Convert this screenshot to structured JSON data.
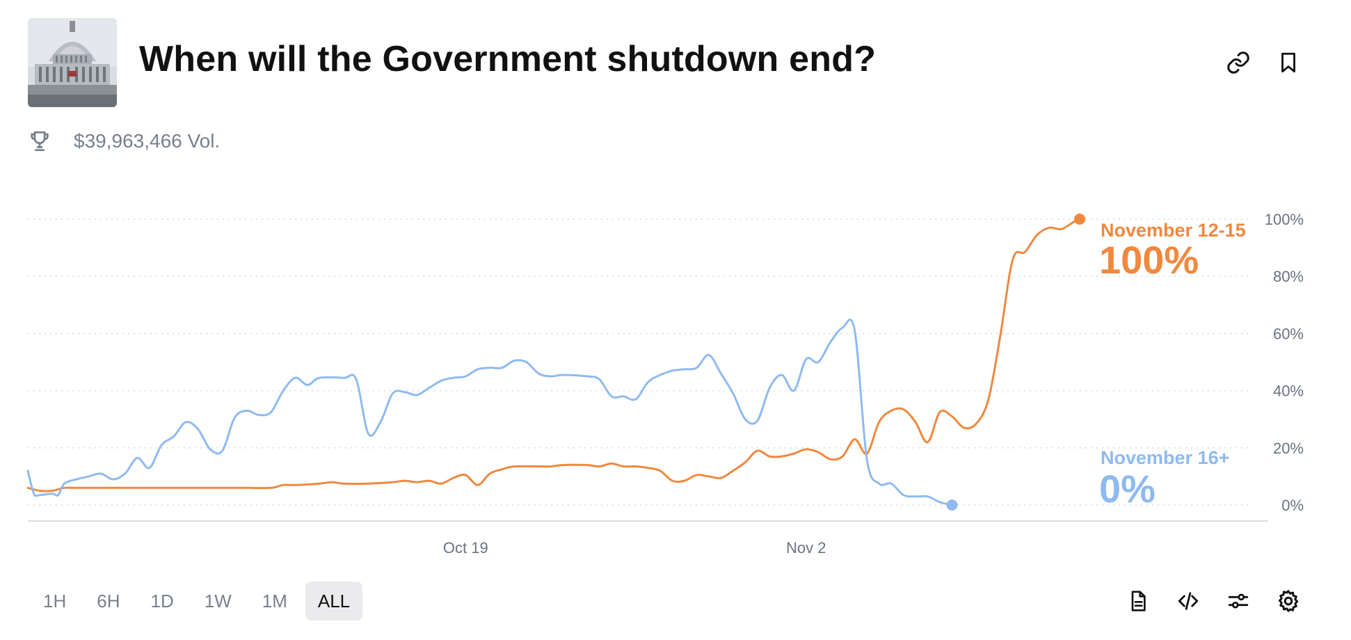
{
  "header": {
    "title": "When will the Government shutdown end?",
    "volume": "$39,963,466 Vol.",
    "thumbnail_icon": "capitol-building-image",
    "link_icon": "link-icon",
    "bookmark_icon": "bookmark-icon",
    "trophy_icon": "trophy-icon"
  },
  "chart_data": {
    "type": "line",
    "ylim": [
      0,
      100
    ],
    "y_ticks": [
      "100%",
      "80%",
      "60%",
      "40%",
      "20%",
      "0%"
    ],
    "x_ticks": [
      "Oct 19",
      "Nov 2"
    ],
    "grid": true,
    "x_start": "2025-10-01",
    "series": [
      {
        "name": "November 12-15",
        "color": "#f0883e",
        "last_value_label": "100%",
        "points": [
          [
            "2025-10-01",
            6
          ],
          [
            "2025-10-01T12:00",
            5
          ],
          [
            "2025-10-02",
            5
          ],
          [
            "2025-10-02T12:00",
            6
          ],
          [
            "2025-10-03",
            6
          ],
          [
            "2025-10-04",
            6
          ],
          [
            "2025-10-05",
            6
          ],
          [
            "2025-10-06",
            6
          ],
          [
            "2025-10-07",
            6
          ],
          [
            "2025-10-08",
            6
          ],
          [
            "2025-10-09",
            6
          ],
          [
            "2025-10-10",
            6
          ],
          [
            "2025-10-11",
            6
          ],
          [
            "2025-10-11T12:00",
            7
          ],
          [
            "2025-10-12",
            7
          ],
          [
            "2025-10-13",
            7.5
          ],
          [
            "2025-10-13T12:00",
            8
          ],
          [
            "2025-10-14",
            7.5
          ],
          [
            "2025-10-15",
            7.5
          ],
          [
            "2025-10-16",
            8
          ],
          [
            "2025-10-16T12:00",
            8.5
          ],
          [
            "2025-10-17",
            8
          ],
          [
            "2025-10-17T12:00",
            8.5
          ],
          [
            "2025-10-18",
            7.5
          ],
          [
            "2025-10-18T12:00",
            9.5
          ],
          [
            "2025-10-19",
            10.5
          ],
          [
            "2025-10-19T12:00",
            7
          ],
          [
            "2025-10-20",
            11
          ],
          [
            "2025-10-20T12:00",
            12.5
          ],
          [
            "2025-10-21",
            13.5
          ],
          [
            "2025-10-22",
            13.5
          ],
          [
            "2025-10-22T12:00",
            13.5
          ],
          [
            "2025-10-23",
            14
          ],
          [
            "2025-10-24",
            14
          ],
          [
            "2025-10-24T12:00",
            13.5
          ],
          [
            "2025-10-25",
            14.5
          ],
          [
            "2025-10-25T12:00",
            13.5
          ],
          [
            "2025-10-26",
            13.5
          ],
          [
            "2025-10-26T12:00",
            13
          ],
          [
            "2025-10-27",
            12
          ],
          [
            "2025-10-27T12:00",
            8.5
          ],
          [
            "2025-10-28",
            8.5
          ],
          [
            "2025-10-28T12:00",
            10.5
          ],
          [
            "2025-10-29",
            10
          ],
          [
            "2025-10-29T12:00",
            9.5
          ],
          [
            "2025-10-30",
            12
          ],
          [
            "2025-10-30T12:00",
            15
          ],
          [
            "2025-10-31",
            19
          ],
          [
            "2025-10-31T12:00",
            17
          ],
          [
            "2025-11-01",
            17
          ],
          [
            "2025-11-01T12:00",
            18
          ],
          [
            "2025-11-02",
            19.5
          ],
          [
            "2025-11-02T12:00",
            18.5
          ],
          [
            "2025-11-03",
            16
          ],
          [
            "2025-11-03T12:00",
            17
          ],
          [
            "2025-11-04",
            23
          ],
          [
            "2025-11-04T12:00",
            18
          ],
          [
            "2025-11-05",
            29
          ],
          [
            "2025-11-05T12:00",
            33
          ],
          [
            "2025-11-06",
            33.5
          ],
          [
            "2025-11-06T12:00",
            29
          ],
          [
            "2025-11-07",
            22
          ],
          [
            "2025-11-07T12:00",
            32.5
          ],
          [
            "2025-11-08",
            31
          ],
          [
            "2025-11-08T12:00",
            27
          ],
          [
            "2025-11-09",
            28.5
          ],
          [
            "2025-11-09T12:00",
            37
          ],
          [
            "2025-11-10",
            60
          ],
          [
            "2025-11-10T12:00",
            86
          ],
          [
            "2025-11-11",
            88.5
          ],
          [
            "2025-11-11T12:00",
            94.5
          ],
          [
            "2025-11-12",
            97
          ],
          [
            "2025-11-12T12:00",
            96.5
          ],
          [
            "2025-11-13",
            99
          ],
          [
            "2025-11-13T06:00",
            100
          ]
        ]
      },
      {
        "name": "November 16+",
        "color": "#8fbaf0",
        "last_value_label": "0%",
        "points": [
          [
            "2025-10-01",
            12
          ],
          [
            "2025-10-01T06:00",
            4
          ],
          [
            "2025-10-01T12:00",
            3.5
          ],
          [
            "2025-10-02",
            4
          ],
          [
            "2025-10-02T06:00",
            3.5
          ],
          [
            "2025-10-02T12:00",
            7.5
          ],
          [
            "2025-10-03",
            9
          ],
          [
            "2025-10-03T12:00",
            10
          ],
          [
            "2025-10-04",
            11
          ],
          [
            "2025-10-04T12:00",
            9
          ],
          [
            "2025-10-05",
            11
          ],
          [
            "2025-10-05T12:00",
            16.5
          ],
          [
            "2025-10-06",
            13
          ],
          [
            "2025-10-06T12:00",
            21
          ],
          [
            "2025-10-07",
            24
          ],
          [
            "2025-10-07T12:00",
            29
          ],
          [
            "2025-10-08",
            26.5
          ],
          [
            "2025-10-08T12:00",
            19.5
          ],
          [
            "2025-10-09",
            19
          ],
          [
            "2025-10-09T12:00",
            30.5
          ],
          [
            "2025-10-10",
            33
          ],
          [
            "2025-10-10T12:00",
            31.5
          ],
          [
            "2025-10-11",
            32.5
          ],
          [
            "2025-10-11T12:00",
            40
          ],
          [
            "2025-10-12",
            44.5
          ],
          [
            "2025-10-12T12:00",
            42
          ],
          [
            "2025-10-13",
            44.5
          ],
          [
            "2025-10-14",
            44.5
          ],
          [
            "2025-10-14T12:00",
            44
          ],
          [
            "2025-10-15",
            25
          ],
          [
            "2025-10-15T12:00",
            29
          ],
          [
            "2025-10-16",
            39
          ],
          [
            "2025-10-16T12:00",
            39.5
          ],
          [
            "2025-10-17",
            38.5
          ],
          [
            "2025-10-17T12:00",
            41
          ],
          [
            "2025-10-18",
            43.5
          ],
          [
            "2025-10-18T12:00",
            44.5
          ],
          [
            "2025-10-19",
            45
          ],
          [
            "2025-10-19T12:00",
            47.5
          ],
          [
            "2025-10-20",
            48
          ],
          [
            "2025-10-20T12:00",
            48
          ],
          [
            "2025-10-21",
            50.5
          ],
          [
            "2025-10-21T12:00",
            50
          ],
          [
            "2025-10-22",
            46
          ],
          [
            "2025-10-22T12:00",
            45
          ],
          [
            "2025-10-23",
            45.5
          ],
          [
            "2025-10-24",
            45
          ],
          [
            "2025-10-24T12:00",
            44
          ],
          [
            "2025-10-25",
            38
          ],
          [
            "2025-10-25T12:00",
            38
          ],
          [
            "2025-10-26",
            37
          ],
          [
            "2025-10-26T12:00",
            43
          ],
          [
            "2025-10-27",
            45.5
          ],
          [
            "2025-10-27T12:00",
            47
          ],
          [
            "2025-10-28",
            47.5
          ],
          [
            "2025-10-28T12:00",
            48
          ],
          [
            "2025-10-29",
            52.5
          ],
          [
            "2025-10-29T12:00",
            46
          ],
          [
            "2025-10-30",
            39
          ],
          [
            "2025-10-30T12:00",
            30
          ],
          [
            "2025-10-31",
            29.5
          ],
          [
            "2025-10-31T12:00",
            41
          ],
          [
            "2025-11-01",
            45.5
          ],
          [
            "2025-11-01T12:00",
            40
          ],
          [
            "2025-11-02",
            51
          ],
          [
            "2025-11-02T12:00",
            50
          ],
          [
            "2025-11-03",
            57
          ],
          [
            "2025-11-03T12:00",
            62
          ],
          [
            "2025-11-04",
            61
          ],
          [
            "2025-11-04T12:00",
            16
          ],
          [
            "2025-11-05",
            7.5
          ],
          [
            "2025-11-05T12:00",
            7.5
          ],
          [
            "2025-11-06",
            3.5
          ],
          [
            "2025-11-06T12:00",
            3
          ],
          [
            "2025-11-07",
            3
          ],
          [
            "2025-11-07T12:00",
            1
          ],
          [
            "2025-11-08",
            0
          ]
        ]
      }
    ]
  },
  "ranges": {
    "items": [
      "1H",
      "6H",
      "1D",
      "1W",
      "1M",
      "ALL"
    ],
    "active": "ALL"
  },
  "tools": {
    "icons": [
      "document-icon",
      "embed-code-icon",
      "sliders-icon",
      "settings-gear-icon"
    ]
  }
}
